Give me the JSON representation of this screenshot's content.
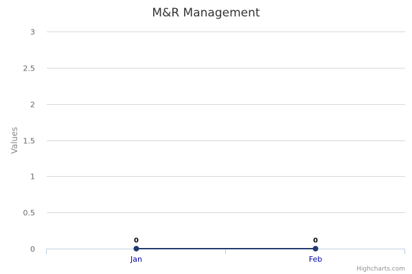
{
  "chart_data": {
    "type": "line",
    "title": "M&R Management",
    "ylabel": "Values",
    "categories": [
      "Jan",
      "Feb"
    ],
    "series": [
      {
        "values": [
          0,
          0
        ],
        "color": "#1f3a6e"
      }
    ],
    "ylim": [
      0,
      3
    ],
    "yticks": [
      "0",
      "0.5",
      "1",
      "1.5",
      "2",
      "2.5",
      "3"
    ],
    "data_labels": [
      "0",
      "0"
    ],
    "grid": true,
    "legend": "none"
  },
  "credits": "Highcharts.com"
}
